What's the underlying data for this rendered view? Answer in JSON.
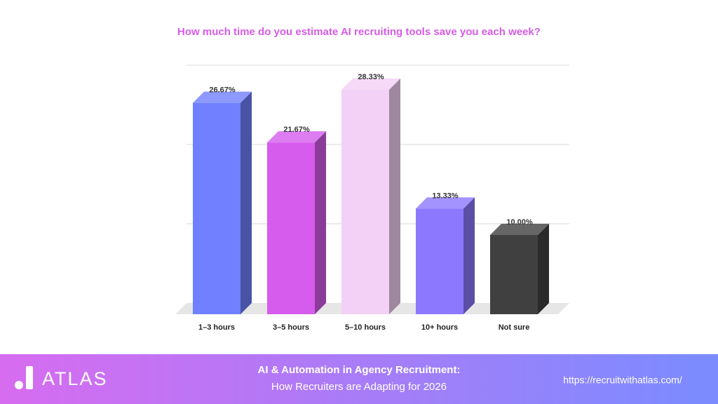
{
  "chart_data": {
    "type": "bar3d",
    "title": "How much time do you estimate AI recruiting tools save you each week?",
    "categories": [
      "1–3 hours",
      "3–5 hours",
      "5–10 hours",
      "10+ hours",
      "Not sure"
    ],
    "values": [
      26.67,
      21.67,
      28.33,
      13.33,
      10.0
    ],
    "value_labels": [
      "26.67%",
      "21.67%",
      "28.33%",
      "13.33%",
      "10.00%"
    ],
    "colors": [
      "#7080ff",
      "#d65ced",
      "#f3d0f5",
      "#8c78ff",
      "#404040"
    ],
    "ylim": [
      0,
      30
    ],
    "yticks": [
      0,
      10,
      20,
      30
    ],
    "grid": true
  },
  "footer": {
    "logo": "ATLAS",
    "title": "AI & Automation in Agency Recruitment:",
    "subtitle": "How Recruiters are Adapting for 2026",
    "url": "https://recruitwithatlas.com/"
  }
}
